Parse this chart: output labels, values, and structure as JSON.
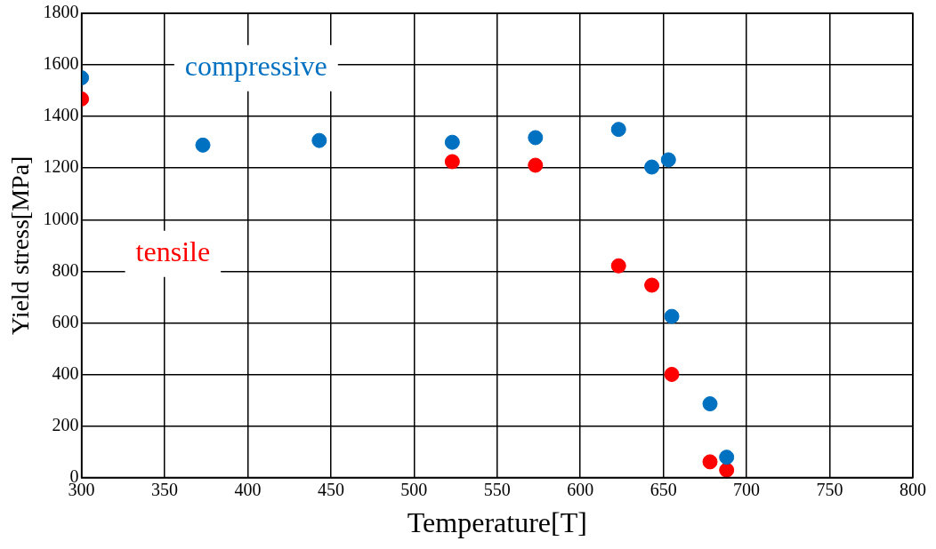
{
  "chart_data": {
    "type": "scatter",
    "xlabel": "Temperature[T]",
    "ylabel": "Yield stress[MPa]",
    "xlim": [
      300,
      800
    ],
    "xticks": [
      300,
      350,
      400,
      450,
      500,
      550,
      600,
      650,
      700,
      750,
      800
    ],
    "ylim": [
      0,
      1800
    ],
    "yticks": [
      0,
      200,
      400,
      600,
      800,
      1000,
      1200,
      1400,
      1600,
      1800
    ],
    "grid": true,
    "legend": false,
    "marker": "circle",
    "series": [
      {
        "name": "compressive",
        "color": "#0070c0",
        "x": [
          300,
          373,
          443,
          523,
          573,
          623,
          643,
          653,
          655,
          678,
          688
        ],
        "values": [
          1550,
          1289,
          1307,
          1300,
          1318,
          1350,
          1204,
          1232,
          625,
          286,
          79
        ]
      },
      {
        "name": "tensile",
        "color": "#ff0000",
        "x": [
          300,
          523,
          573,
          623,
          643,
          655,
          678,
          688
        ],
        "values": [
          1468,
          1225,
          1211,
          821,
          746,
          400,
          61,
          29
        ]
      }
    ]
  }
}
